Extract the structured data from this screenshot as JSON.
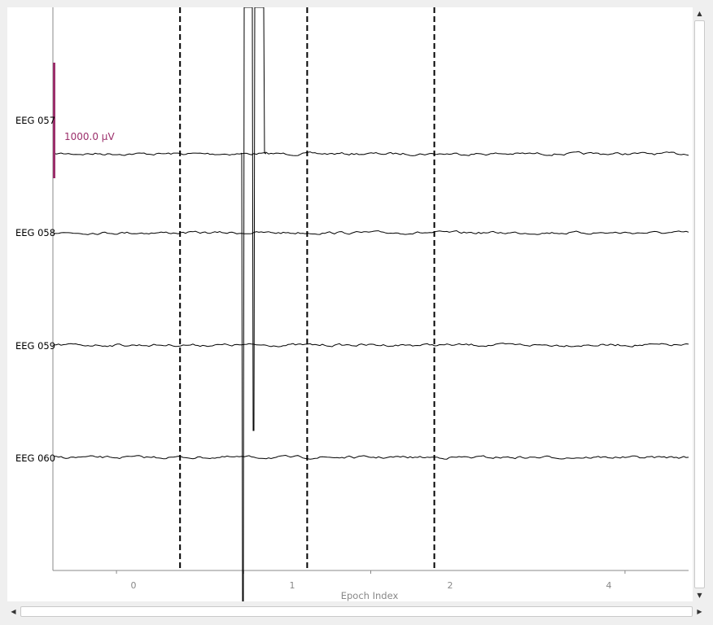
{
  "channels": [
    {
      "name": "EEG 057"
    },
    {
      "name": "EEG 058"
    },
    {
      "name": "EEG 059"
    },
    {
      "name": "EEG 060"
    }
  ],
  "scale_bar": {
    "label": "1000.0 µV",
    "color": "#9b2f6b"
  },
  "x_axis": {
    "label": "Epoch Index",
    "ticks": [
      "0",
      "1",
      "2",
      "4"
    ],
    "tick_values": [
      0,
      1,
      2,
      4
    ],
    "range": [
      -0.5,
      4.5
    ]
  },
  "epoch_boundaries": [
    0.5,
    1.5,
    2.5
  ],
  "colors": {
    "trace": "#000000",
    "axis": "#888888",
    "background": "#ffffff"
  },
  "scrollbars": {
    "vertical": {
      "up_icon": "arrow-up-icon",
      "down_icon": "arrow-down-icon"
    },
    "horizontal": {
      "left_icon": "arrow-left-icon",
      "right_icon": "arrow-right-icon"
    }
  }
}
